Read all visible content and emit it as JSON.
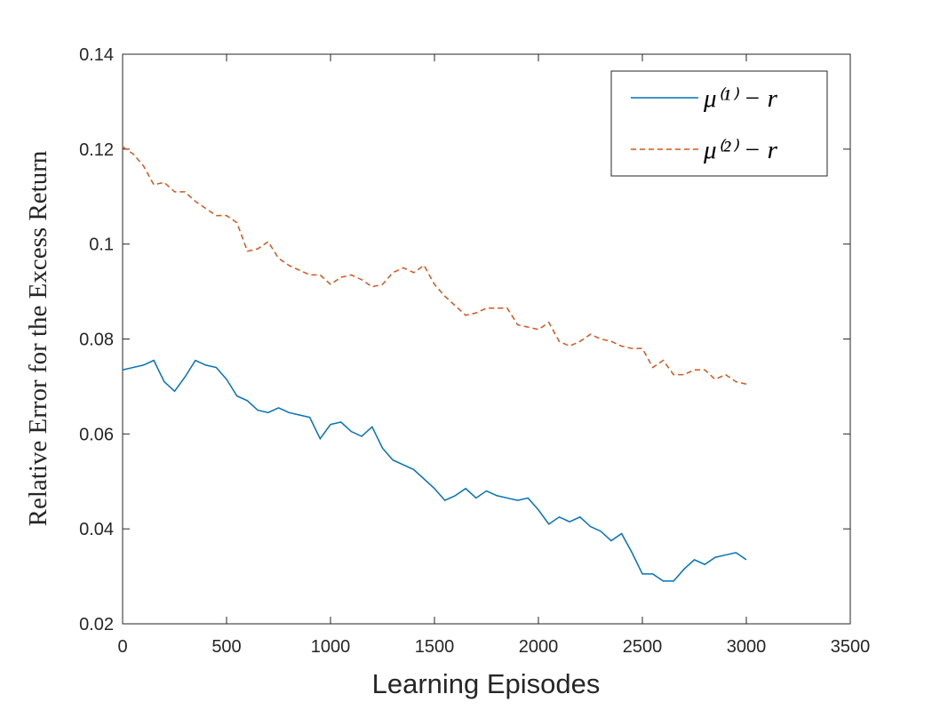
{
  "chart_data": {
    "type": "line",
    "xlabel": "Learning Episodes",
    "ylabel": "Relative Error for the Excess Return",
    "x": [
      0,
      50,
      100,
      150,
      200,
      250,
      300,
      350,
      400,
      450,
      500,
      550,
      600,
      650,
      700,
      750,
      800,
      850,
      900,
      950,
      1000,
      1050,
      1100,
      1150,
      1200,
      1250,
      1300,
      1350,
      1400,
      1450,
      1500,
      1550,
      1600,
      1650,
      1700,
      1750,
      1800,
      1850,
      1900,
      1950,
      2000,
      2050,
      2100,
      2150,
      2200,
      2250,
      2300,
      2350,
      2400,
      2450,
      2500,
      2550,
      2600,
      2650,
      2700,
      2750,
      2800,
      2850,
      2900,
      2950,
      3000
    ],
    "series": [
      {
        "name": "μ⁽¹⁾ − r",
        "color": "#0072bd",
        "dash": false,
        "values": [
          0.0735,
          0.074,
          0.0745,
          0.0755,
          0.071,
          0.069,
          0.072,
          0.0755,
          0.0745,
          0.074,
          0.0715,
          0.068,
          0.067,
          0.065,
          0.0645,
          0.0655,
          0.0645,
          0.064,
          0.0635,
          0.059,
          0.062,
          0.0625,
          0.0605,
          0.0595,
          0.0615,
          0.057,
          0.0545,
          0.0535,
          0.0525,
          0.0505,
          0.0485,
          0.046,
          0.047,
          0.0485,
          0.0465,
          0.048,
          0.047,
          0.0465,
          0.046,
          0.0465,
          0.044,
          0.041,
          0.0425,
          0.0415,
          0.0425,
          0.0405,
          0.0395,
          0.0375,
          0.039,
          0.035,
          0.0305,
          0.0305,
          0.029,
          0.029,
          0.0315,
          0.0335,
          0.0325,
          0.034,
          0.0345,
          0.035,
          0.0335
        ]
      },
      {
        "name": "μ⁽²⁾ − r",
        "color": "#d95319",
        "dash": true,
        "values": [
          0.1205,
          0.119,
          0.1165,
          0.1125,
          0.113,
          0.111,
          0.111,
          0.109,
          0.1075,
          0.106,
          0.106,
          0.1045,
          0.0985,
          0.099,
          0.1005,
          0.097,
          0.0955,
          0.0945,
          0.0935,
          0.0935,
          0.0915,
          0.093,
          0.0935,
          0.0925,
          0.091,
          0.0915,
          0.094,
          0.095,
          0.094,
          0.0955,
          0.0915,
          0.089,
          0.087,
          0.085,
          0.0855,
          0.0865,
          0.0865,
          0.0865,
          0.083,
          0.0825,
          0.082,
          0.0835,
          0.0795,
          0.0785,
          0.0795,
          0.081,
          0.08,
          0.0795,
          0.0785,
          0.078,
          0.078,
          0.074,
          0.0755,
          0.0725,
          0.0725,
          0.0735,
          0.0735,
          0.0715,
          0.0725,
          0.071,
          0.0705
        ]
      }
    ],
    "xlim": [
      0,
      3500
    ],
    "xticks": [
      0,
      500,
      1000,
      1500,
      2000,
      2500,
      3000,
      3500
    ],
    "ylim": [
      0.02,
      0.14
    ],
    "yticks": [
      0.02,
      0.04,
      0.06,
      0.08,
      0.1,
      0.12,
      0.14
    ],
    "grid": false,
    "legend": "top-right"
  }
}
